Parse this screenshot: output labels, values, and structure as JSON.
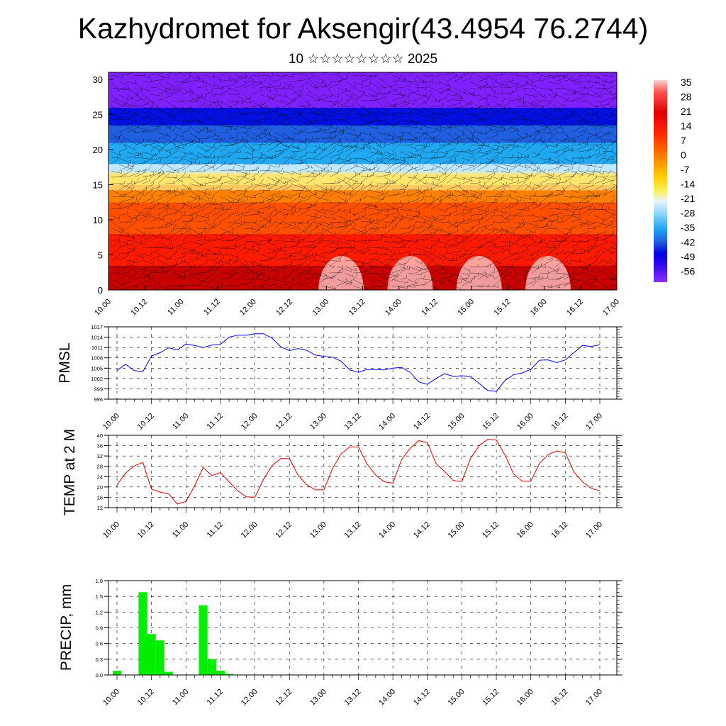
{
  "header": {
    "title": "Kazhydromet for Aksengir(43.4954 76.2744)",
    "subtitle": "10 ☆☆☆☆☆☆☆☆ 2025"
  },
  "time_labels": [
    "10.00",
    "10.12",
    "11.00",
    "11.12",
    "12.00",
    "12.12",
    "13.00",
    "13.12",
    "14.00",
    "14.12",
    "15.00",
    "15.12",
    "16.00",
    "16.12",
    "17.00"
  ],
  "chart_data": [
    {
      "type": "heatmap",
      "name": "temperature-cross-section",
      "x_ticks": [
        "10.00",
        "10.12",
        "11.00",
        "11.12",
        "12.00",
        "12.12",
        "13.00",
        "13.12",
        "14.00",
        "14.12",
        "15.00",
        "15.12",
        "16.00",
        "16.12",
        "17.00"
      ],
      "y_ticks": [
        0,
        5,
        10,
        15,
        20,
        25,
        30
      ],
      "ylim": [
        0,
        31
      ],
      "colorbar": {
        "labels": [
          "35",
          "28",
          "21",
          "14",
          "7",
          "0",
          "-7",
          "-14",
          "-21",
          "-28",
          "-35",
          "-42",
          "-49",
          "-56"
        ],
        "range": [
          -63,
          42
        ]
      },
      "colors": {
        "deep_red": "#c80000",
        "red": "#ff1a00",
        "orange": "#ff8000",
        "yellow": "#ffe030",
        "light_blue": "#c0e8ff",
        "cyan": "#20a8f0",
        "blue": "#0010e0",
        "violet": "#8020ff",
        "pink": "#ffd0d0"
      },
      "wind_barbs": true
    },
    {
      "type": "line",
      "name": "PMSL",
      "ylabel": "PMSL",
      "ylim": [
        996,
        1017
      ],
      "y_ticks": [
        996,
        999,
        1002,
        1005,
        1008,
        1011,
        1014,
        1017
      ],
      "color": "#0000ff",
      "x": [
        "10.00",
        "10.03",
        "10.06",
        "10.09",
        "10.12",
        "10.15",
        "10.18",
        "10.21",
        "11.00",
        "11.03",
        "11.06",
        "11.09",
        "11.12",
        "11.15",
        "11.18",
        "11.21",
        "12.00",
        "12.03",
        "12.06",
        "12.09",
        "12.12",
        "12.15",
        "12.18",
        "12.21",
        "13.00",
        "13.03",
        "13.06",
        "13.09",
        "13.12",
        "13.15",
        "13.18",
        "13.21",
        "14.00",
        "14.03",
        "14.06",
        "14.09",
        "14.12",
        "14.15",
        "14.18",
        "14.21",
        "15.00",
        "15.03",
        "15.06",
        "15.09",
        "15.12",
        "15.15",
        "15.18",
        "15.21",
        "16.00",
        "16.03",
        "16.06",
        "16.09",
        "16.12",
        "16.15",
        "16.18",
        "16.21",
        "17.00"
      ],
      "values": [
        1004.3,
        1006.1,
        1004.3,
        1004.0,
        1008.5,
        1009.5,
        1010.9,
        1010.3,
        1012.0,
        1011.6,
        1011.0,
        1011.7,
        1011.9,
        1014.0,
        1014.6,
        1014.6,
        1015.0,
        1015.0,
        1013.7,
        1011.2,
        1010.1,
        1010.7,
        1010.2,
        1008.8,
        1008.4,
        1008.2,
        1007.0,
        1004.5,
        1003.8,
        1004.6,
        1004.6,
        1004.5,
        1005.0,
        1005.2,
        1003.8,
        1001.0,
        1000.3,
        1002.0,
        1003.4,
        1002.6,
        1002.8,
        1002.6,
        1000.6,
        998.5,
        998.3,
        1001.4,
        1003.1,
        1003.6,
        1004.7,
        1007.3,
        1007.4,
        1006.6,
        1007.4,
        1009.5,
        1011.6,
        1011.3,
        1011.8
      ]
    },
    {
      "type": "line",
      "name": "TEMP at 2 M",
      "ylabel": "TEMP at 2 M",
      "ylim": [
        12,
        40
      ],
      "y_ticks": [
        12,
        16,
        20,
        24,
        28,
        32,
        36,
        40
      ],
      "color": "#e00000",
      "x": [
        "10.00",
        "10.03",
        "10.06",
        "10.09",
        "10.12",
        "10.15",
        "10.18",
        "10.21",
        "11.00",
        "11.03",
        "11.06",
        "11.09",
        "11.12",
        "11.15",
        "11.18",
        "11.21",
        "12.00",
        "12.03",
        "12.06",
        "12.09",
        "12.12",
        "12.15",
        "12.18",
        "12.21",
        "13.00",
        "13.03",
        "13.06",
        "13.09",
        "13.12",
        "13.15",
        "13.18",
        "13.21",
        "14.00",
        "14.03",
        "14.06",
        "14.09",
        "14.12",
        "14.15",
        "14.18",
        "14.21",
        "15.00",
        "15.03",
        "15.06",
        "15.09",
        "15.12",
        "15.15",
        "15.18",
        "15.21",
        "16.00",
        "16.03",
        "16.06",
        "16.09",
        "16.12",
        "16.15",
        "16.18",
        "16.21",
        "17.00"
      ],
      "values": [
        20.8,
        25.4,
        28.2,
        29.5,
        19.2,
        18.0,
        17.3,
        13.4,
        14.4,
        20.4,
        27.5,
        24.4,
        25.6,
        22.0,
        18.5,
        16.2,
        16.0,
        23.0,
        28.3,
        31.0,
        31.0,
        24.5,
        20.9,
        18.9,
        18.9,
        27.1,
        32.9,
        35.5,
        35.5,
        28.9,
        24.6,
        22.0,
        21.5,
        30.5,
        35.0,
        37.9,
        37.2,
        29.1,
        26.0,
        22.5,
        22.1,
        31.0,
        36.0,
        38.4,
        38.2,
        32.4,
        25.0,
        22.2,
        22.2,
        29.1,
        32.5,
        34.0,
        33.2,
        25.8,
        22.0,
        19.5,
        18.5
      ]
    },
    {
      "type": "bar",
      "name": "PRECIP, mm",
      "ylabel": "PRECIP, mm",
      "ylim": [
        0,
        1.8
      ],
      "y_ticks": [
        "0.0",
        "0.3",
        "0.6",
        "0.9",
        "1.2",
        "1.5",
        "1.8"
      ],
      "color": "#00ee00",
      "x": [
        "10.00",
        "10.03",
        "10.06",
        "10.09",
        "10.12",
        "10.15",
        "10.18",
        "10.21",
        "11.00",
        "11.03",
        "11.06",
        "11.09",
        "11.12",
        "11.15",
        "11.18",
        "11.21",
        "12.00",
        "12.03",
        "12.06",
        "12.09",
        "12.12",
        "12.15",
        "12.18",
        "12.21",
        "13.00",
        "13.03",
        "13.06",
        "13.09",
        "13.12",
        "13.15",
        "13.18",
        "13.21",
        "14.00",
        "14.03",
        "14.06",
        "14.09",
        "14.12",
        "14.15",
        "14.18",
        "14.21",
        "15.00",
        "15.03",
        "15.06",
        "15.09",
        "15.12",
        "15.15",
        "15.18",
        "15.21",
        "16.00",
        "16.03",
        "16.06",
        "16.09",
        "16.12",
        "16.15",
        "16.18",
        "16.21",
        "17.00"
      ],
      "values": [
        0.08,
        0,
        0,
        1.58,
        0.78,
        0.66,
        0.06,
        0,
        0,
        0,
        1.33,
        0.3,
        0.08,
        0.02,
        0,
        0,
        0,
        0,
        0,
        0,
        0,
        0,
        0,
        0,
        0,
        0,
        0,
        0,
        0,
        0,
        0,
        0,
        0,
        0,
        0,
        0,
        0,
        0,
        0,
        0,
        0,
        0,
        0,
        0,
        0,
        0,
        0,
        0,
        0,
        0,
        0,
        0,
        0,
        0,
        0,
        0,
        0
      ]
    }
  ]
}
